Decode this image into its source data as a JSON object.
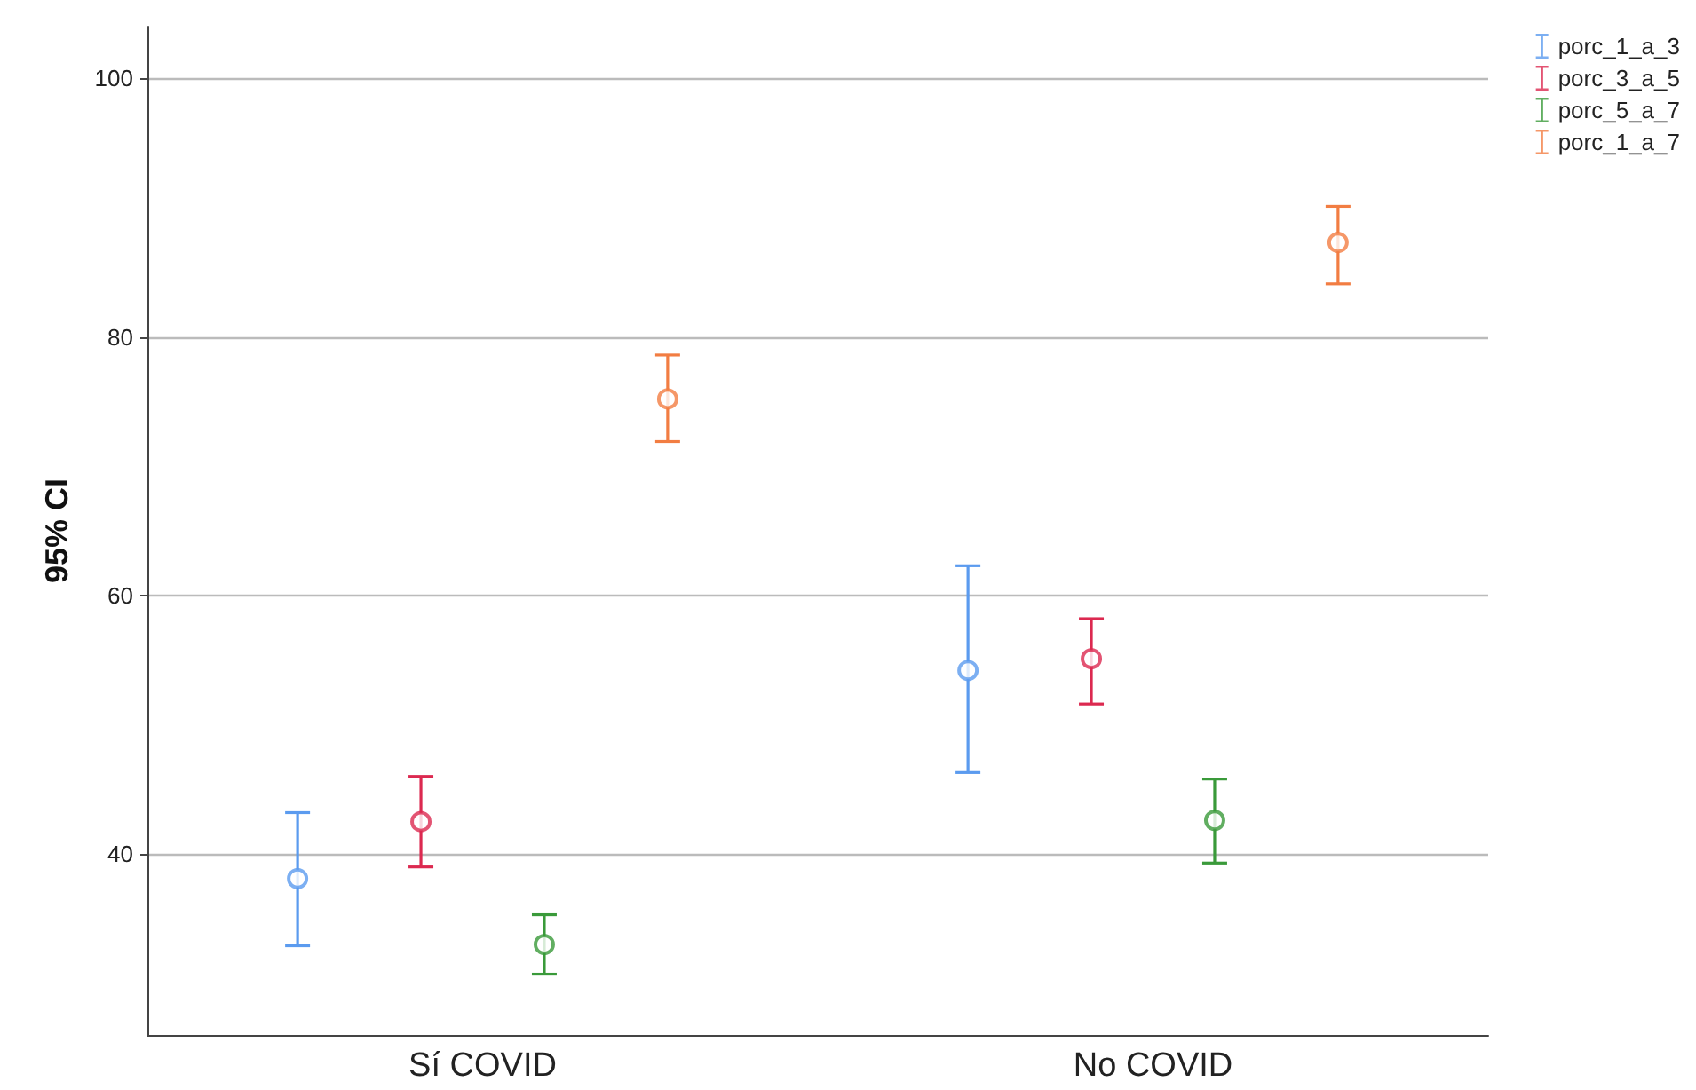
{
  "chart_data": {
    "type": "scatter",
    "ylabel": "95% CI",
    "categories": [
      "Sí COVID",
      "No COVID"
    ],
    "ylim": [
      26,
      104
    ],
    "yticks": [
      40,
      60,
      80,
      100
    ],
    "grid": "y",
    "legend": "top right",
    "marker": "circle",
    "series": [
      {
        "name": "porc_1_a_3",
        "color": "#5b9bef",
        "values": [
          38.1,
          54.2
        ],
        "errors": [
          [
            32.9,
            43.2
          ],
          [
            46.3,
            62.3
          ]
        ]
      },
      {
        "name": "porc_3_a_5",
        "color": "#dc2950",
        "values": [
          42.5,
          55.1
        ],
        "errors": [
          [
            39.0,
            46.0
          ],
          [
            51.6,
            58.2
          ]
        ]
      },
      {
        "name": "porc_5_a_7",
        "color": "#3a9a3a",
        "values": [
          33.0,
          42.6
        ],
        "errors": [
          [
            30.7,
            35.3
          ],
          [
            39.3,
            45.8
          ]
        ]
      },
      {
        "name": "porc_1_a_7",
        "color": "#f27d42",
        "values": [
          75.2,
          87.3
        ],
        "errors": [
          [
            71.9,
            78.6
          ],
          [
            84.1,
            90.1
          ]
        ]
      }
    ]
  }
}
